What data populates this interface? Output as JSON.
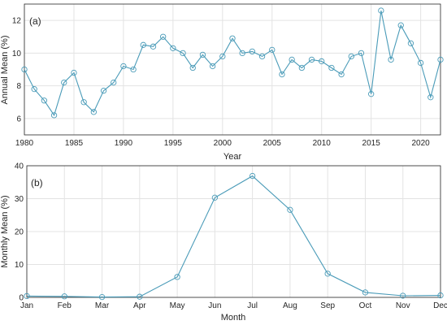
{
  "chart_data": [
    {
      "type": "line",
      "panel_label": "(a)",
      "xlabel": "Year",
      "ylabel": "Annual Mean (%)",
      "xlim": [
        1980,
        2022
      ],
      "ylim": [
        5,
        13
      ],
      "xticks": [
        1980,
        1985,
        1990,
        1995,
        2000,
        2005,
        2010,
        2015,
        2020
      ],
      "yticks": [
        6,
        8,
        10,
        12
      ],
      "grid": true,
      "marker": "open-circle",
      "color": "#4a9bb8",
      "x": [
        1980,
        1981,
        1982,
        1983,
        1984,
        1985,
        1986,
        1987,
        1988,
        1989,
        1990,
        1991,
        1992,
        1993,
        1994,
        1995,
        1996,
        1997,
        1998,
        1999,
        2000,
        2001,
        2002,
        2003,
        2004,
        2005,
        2006,
        2007,
        2008,
        2009,
        2010,
        2011,
        2012,
        2013,
        2014,
        2015,
        2016,
        2017,
        2018,
        2019,
        2020,
        2021,
        2022
      ],
      "y": [
        9.0,
        7.8,
        7.1,
        6.2,
        8.2,
        8.8,
        7.0,
        6.4,
        7.7,
        8.2,
        9.2,
        9.0,
        10.5,
        10.4,
        11.0,
        10.3,
        10.0,
        9.1,
        9.9,
        9.2,
        9.8,
        10.9,
        10.0,
        10.1,
        9.8,
        10.2,
        8.7,
        9.6,
        9.1,
        9.6,
        9.5,
        9.1,
        8.7,
        9.8,
        10.0,
        7.5,
        12.6,
        9.6,
        11.7,
        10.6,
        9.4,
        7.3,
        9.6
      ]
    },
    {
      "type": "line",
      "panel_label": "(b)",
      "xlabel": "Month",
      "ylabel": "Monthly Mean (%)",
      "categories": [
        "Jan",
        "Feb",
        "Mar",
        "Apr",
        "May",
        "Jun",
        "Jul",
        "Aug",
        "Sep",
        "Oct",
        "Nov",
        "Dec"
      ],
      "ylim": [
        0,
        40
      ],
      "yticks": [
        0,
        10,
        20,
        30,
        40
      ],
      "grid": true,
      "marker": "open-circle",
      "color": "#4a9bb8",
      "values": [
        0.4,
        0.3,
        0.1,
        0.2,
        6.2,
        30.3,
        36.9,
        26.6,
        7.2,
        1.5,
        0.5,
        0.6
      ]
    }
  ]
}
